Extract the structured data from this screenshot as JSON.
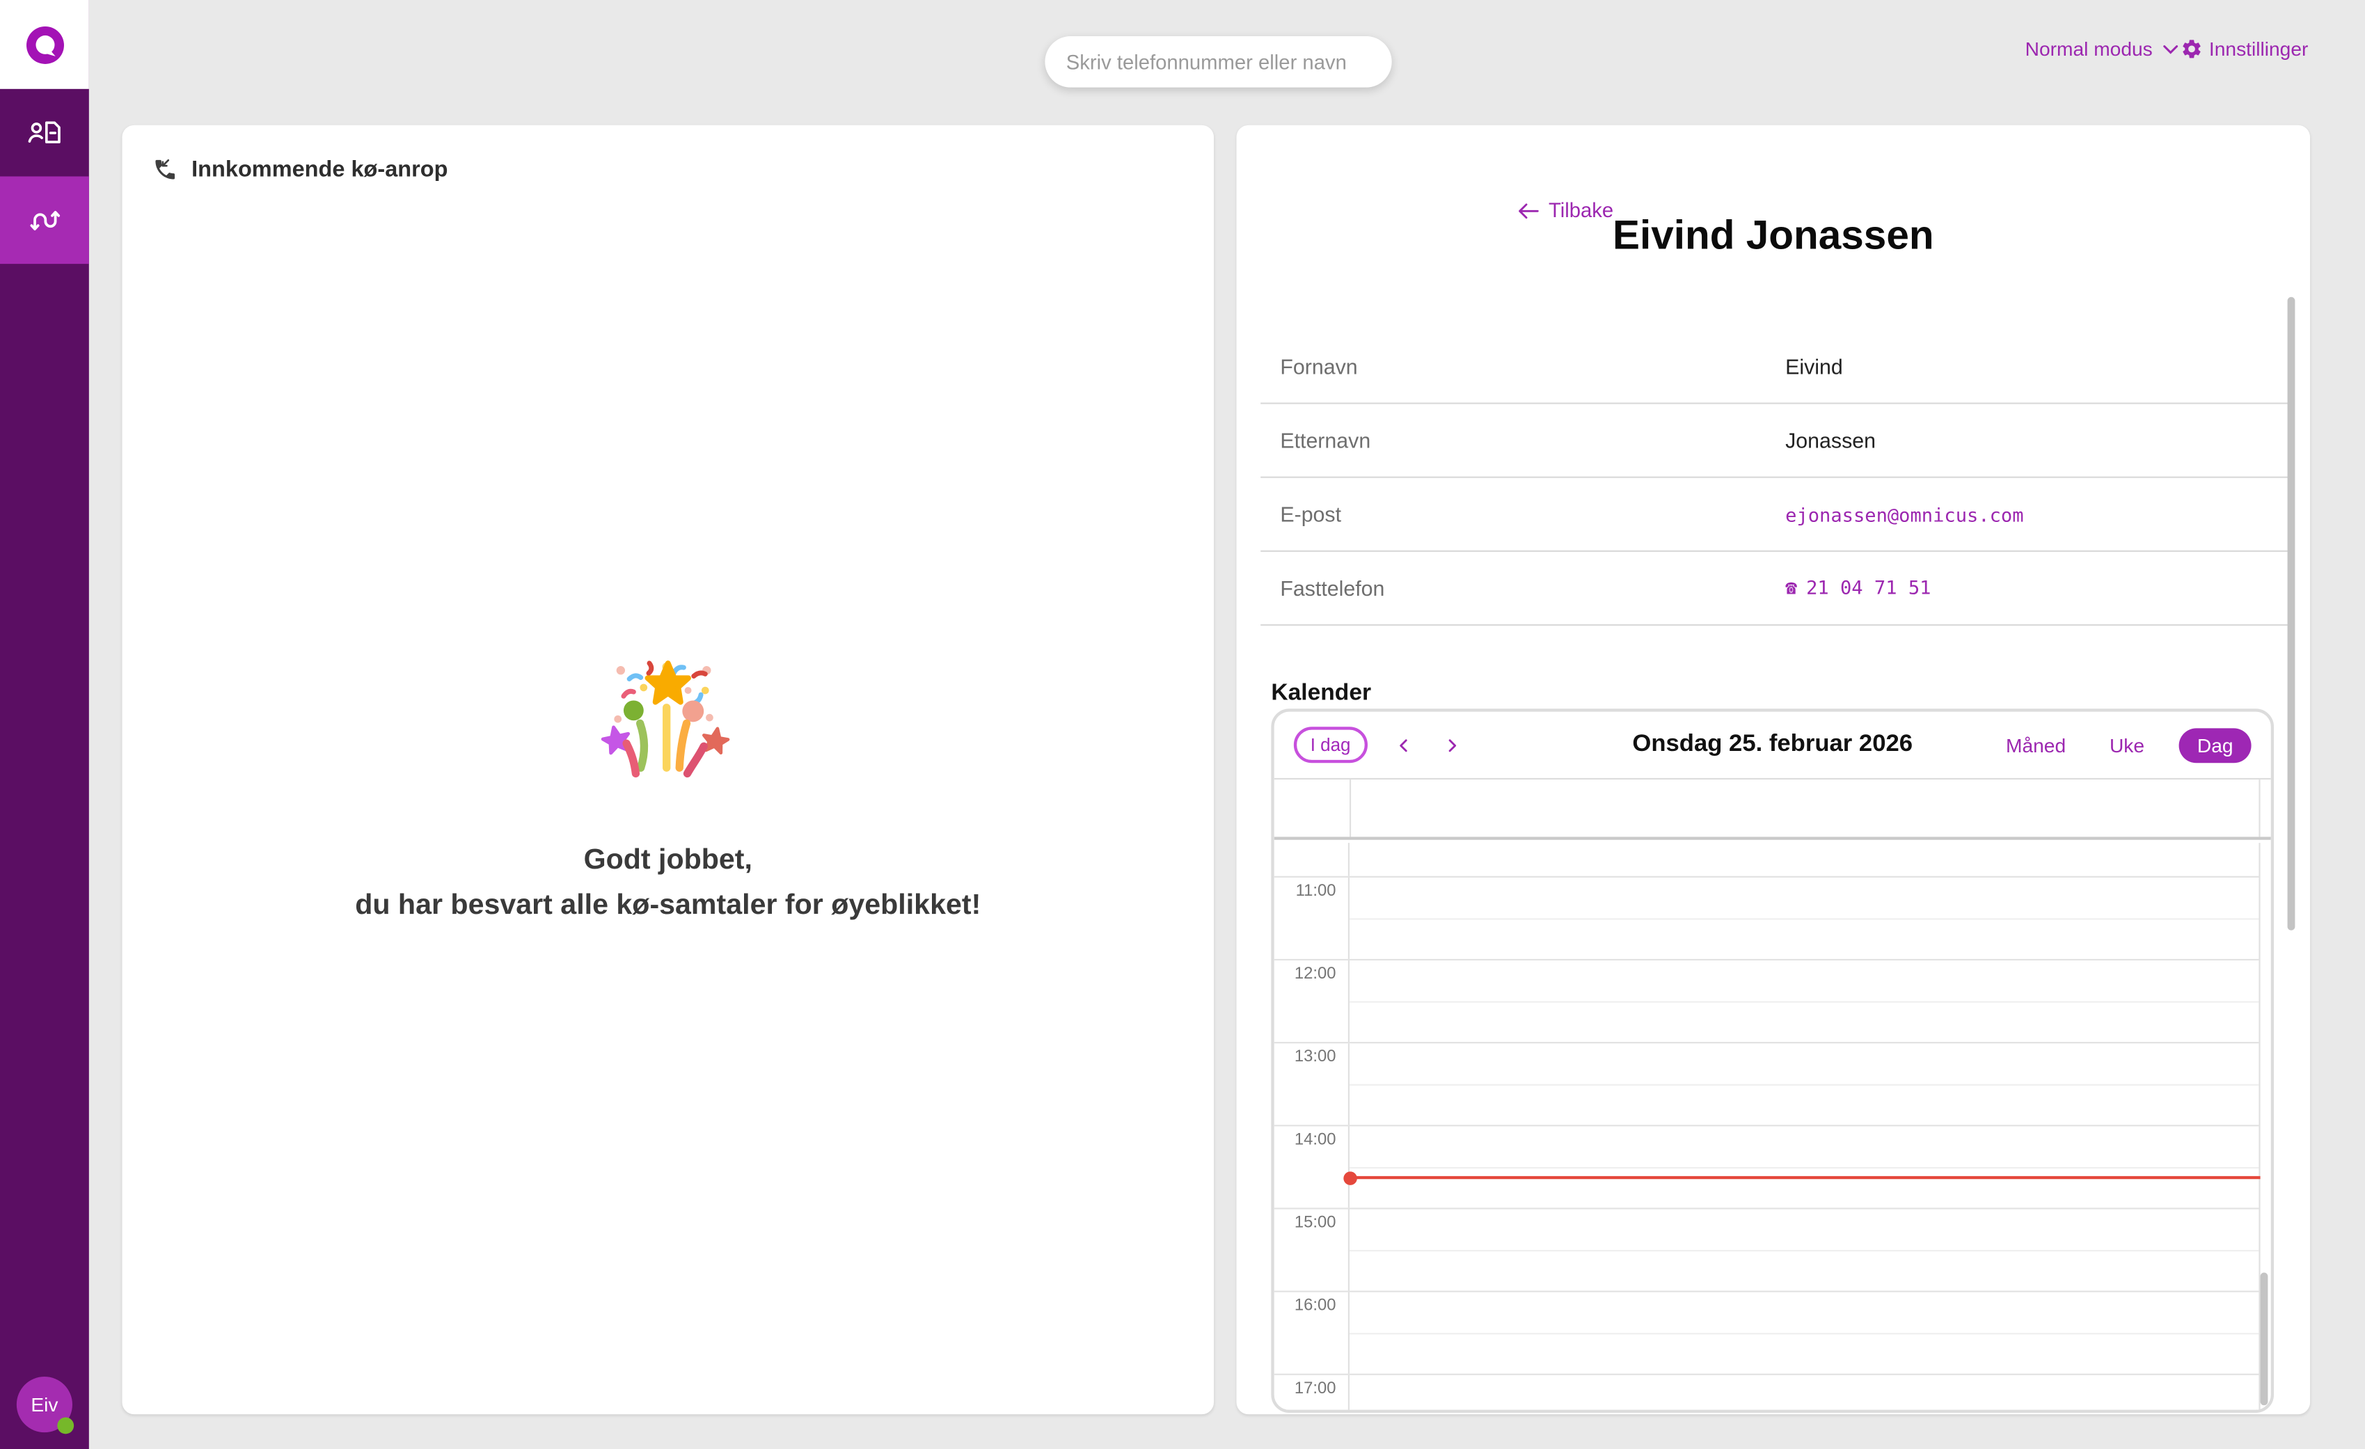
{
  "brand": {
    "name": "omnicus",
    "accent": "#9c27b0"
  },
  "topbar": {
    "search": {
      "placeholder": "Skriv telefonnummer eller navn"
    },
    "mode": {
      "label": "Normal modus"
    },
    "settings": {
      "label": "Innstillinger"
    }
  },
  "sidebar": {
    "nav": [
      {
        "id": "contacts",
        "icon": "contact-page-icon",
        "active": false
      },
      {
        "id": "routing",
        "icon": "route-arrows-icon",
        "active": true
      }
    ],
    "user": {
      "initials": "Eiv",
      "presence": "online",
      "presence_color": "#76b82a"
    }
  },
  "queue_panel": {
    "title": "Innkommende kø-anrop",
    "empty": {
      "line1": "Godt jobbet,",
      "line2": "du har besvart alle kø-samtaler for øyeblikket!"
    }
  },
  "contact": {
    "back": "Tilbake",
    "name": "Eivind Jonassen",
    "fields": [
      {
        "label": "Fornavn",
        "value": "Eivind"
      },
      {
        "label": "Etternavn",
        "value": "Jonassen"
      },
      {
        "label": "E-post",
        "value": "ejonassen@omnicus.com"
      },
      {
        "label": "Fasttelefon",
        "value": "21 04 71 51"
      }
    ]
  },
  "calendar": {
    "heading": "Kalender",
    "today": "I dag",
    "title": "Onsdag 25. februar 2026",
    "views": [
      "Måned",
      "Uke",
      "Dag"
    ],
    "active_view": "Dag",
    "time_labels": [
      "11:00",
      "12:00",
      "13:00",
      "14:00",
      "15:00",
      "16:00",
      "17:00"
    ],
    "now_indicator": {
      "hour_index": 3,
      "fraction": 0.62,
      "color": "#e5483c"
    }
  }
}
